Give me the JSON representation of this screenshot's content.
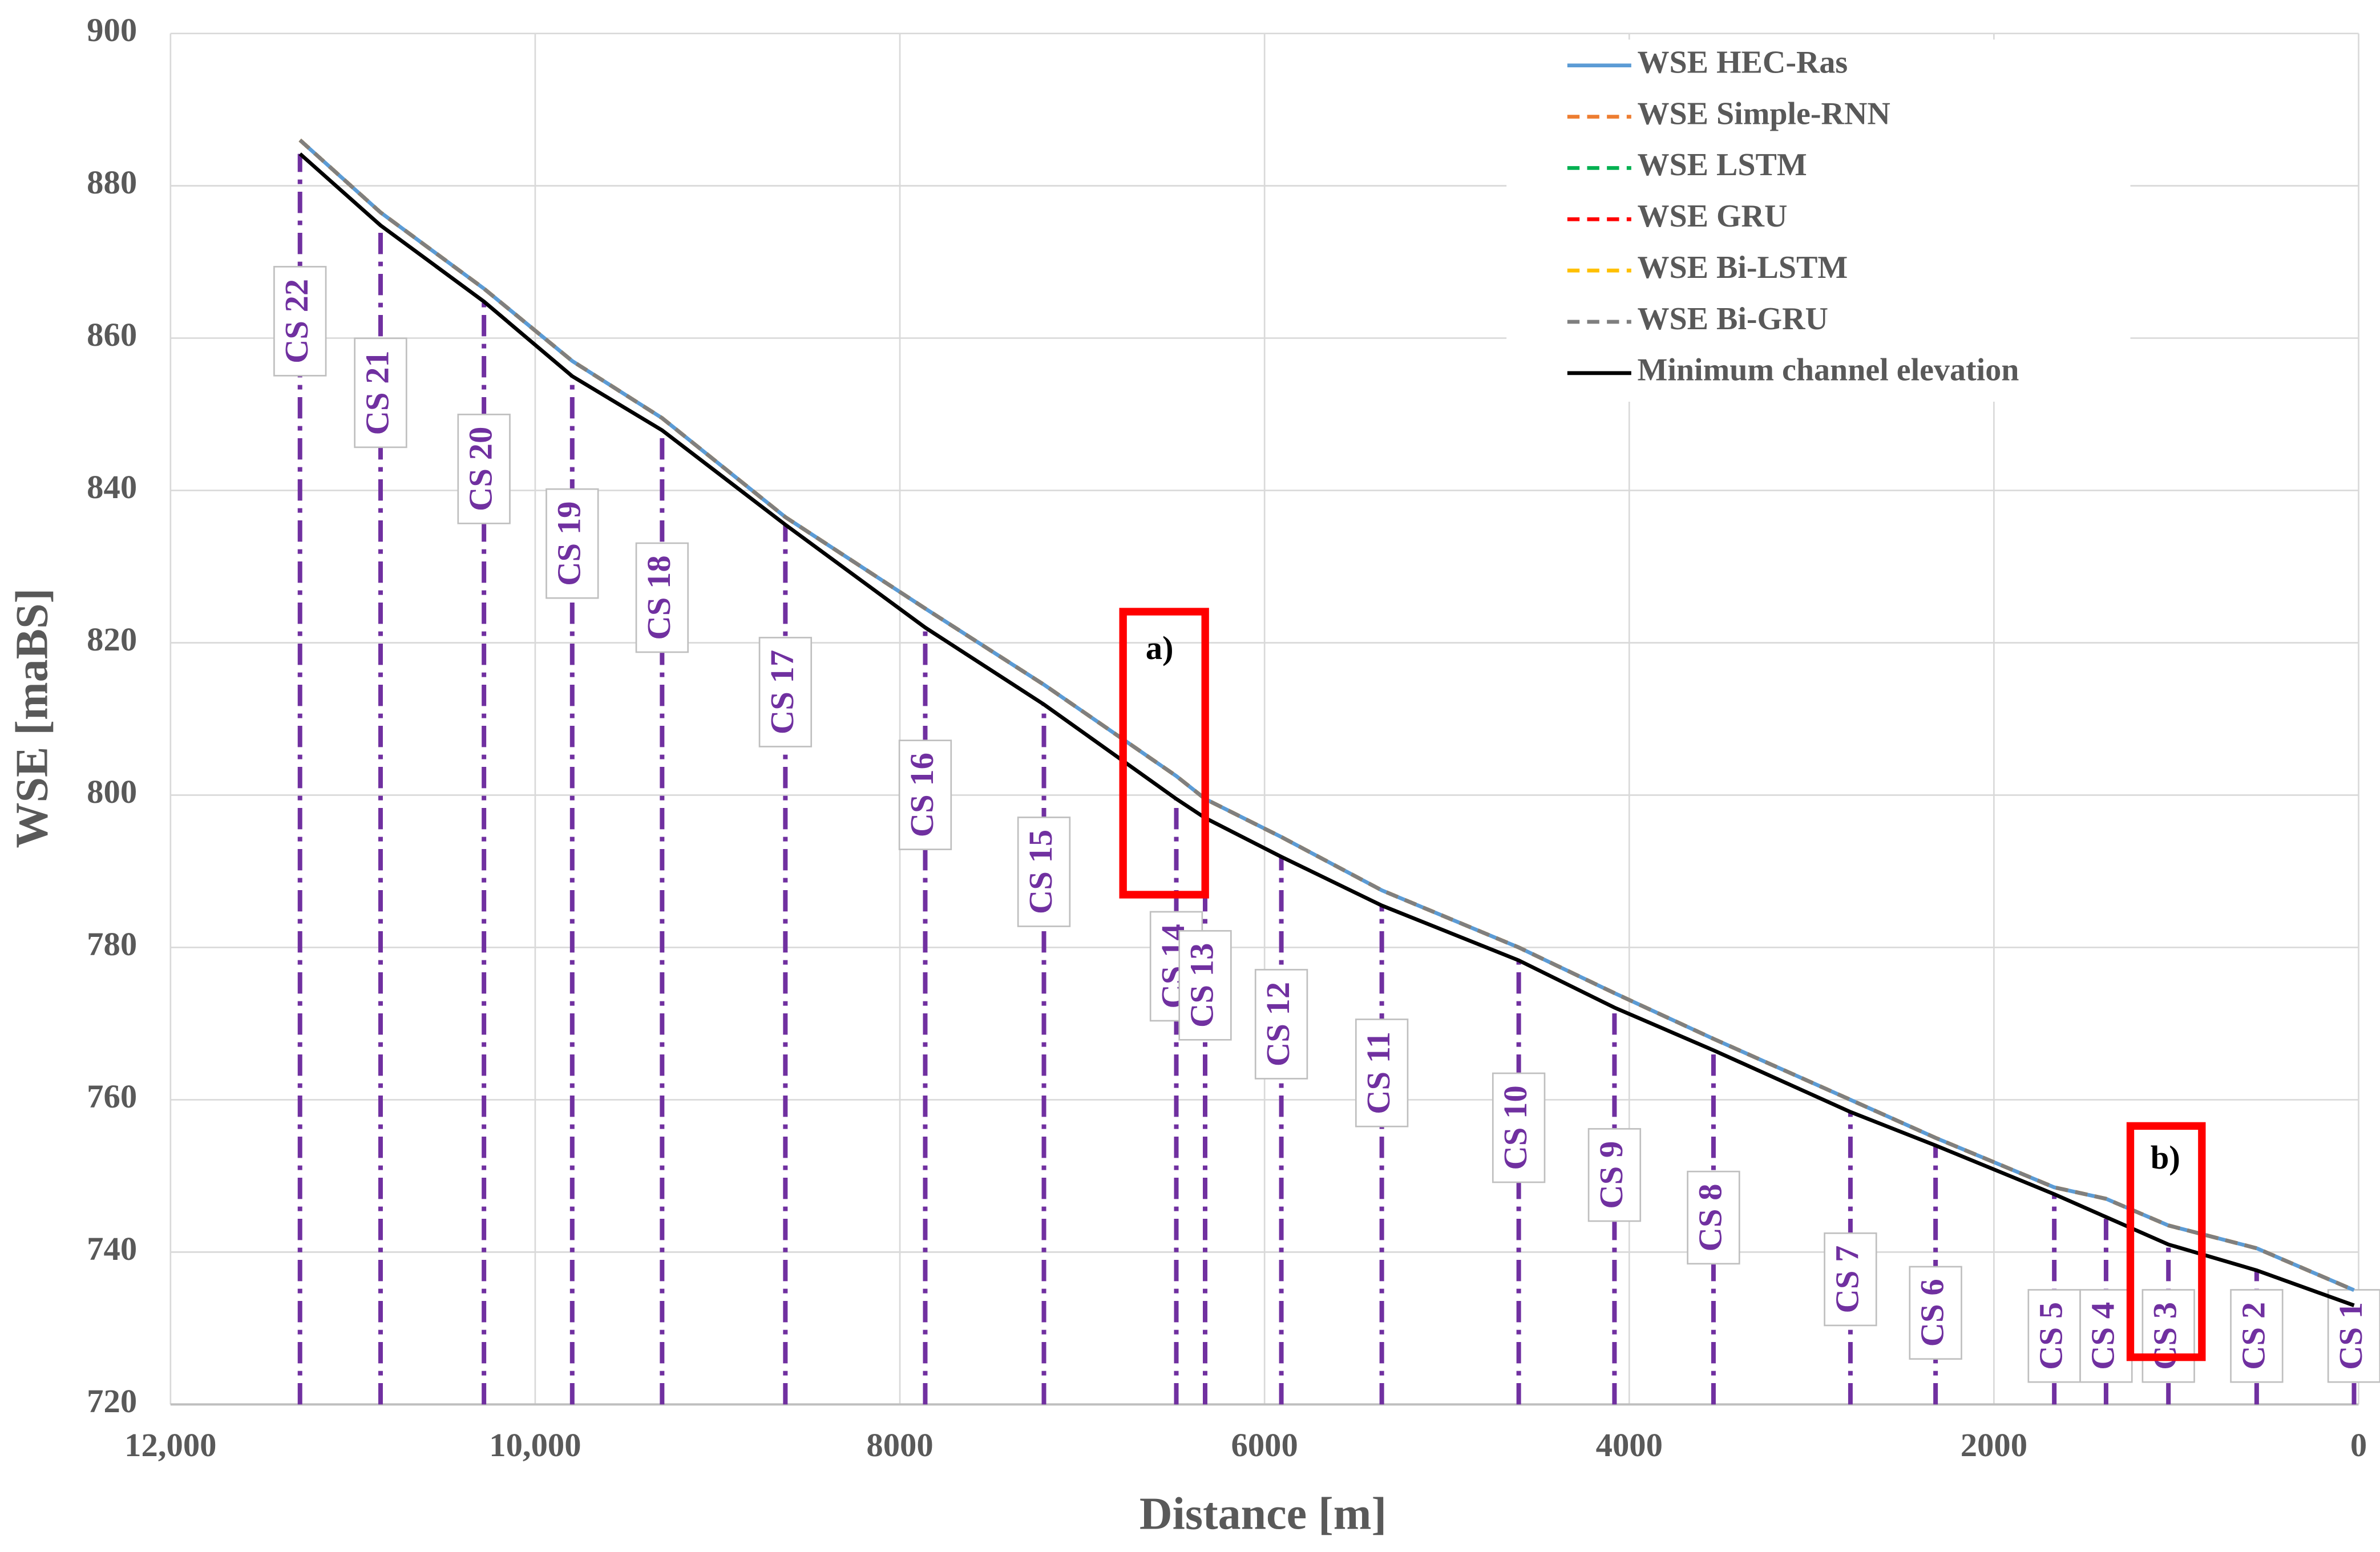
{
  "chart_data": {
    "type": "line",
    "x_label": "Distance [m]",
    "y_label": "WSE [maBS]",
    "x": [
      11290,
      10848,
      10281,
      9797,
      9304,
      8628,
      7861,
      7210,
      6484,
      6326,
      5908,
      5357,
      4606,
      4081,
      3538,
      2787,
      2320,
      1669,
      1385,
      1043,
      559,
      25
    ],
    "section_labels": [
      "CS 22",
      "CS 21",
      "CS 20",
      "CS 19",
      "CS 18",
      "CS 17",
      "CS 16",
      "CS 15",
      "CS 14",
      "CS 13",
      "CS 12",
      "CS 11",
      "CS 10",
      "CS 9",
      "CS 8",
      "CS 7",
      "CS 6",
      "CS 5",
      "CS 4",
      "CS 3",
      "CS 2",
      "CS 1"
    ],
    "section_color": "#7030a0",
    "series": [
      {
        "name": "WSE HEC-Ras",
        "color": "#5b9bd5",
        "linestyle": "solid",
        "values": [
          886,
          876.5,
          866.5,
          857,
          849.5,
          836.5,
          824.5,
          814.5,
          802.5,
          799.5,
          794.5,
          787.5,
          780,
          774,
          768,
          760,
          755,
          748.5,
          747,
          743.5,
          740.5,
          735
        ]
      },
      {
        "name": "WSE Simple-RNN",
        "color": "#ed7d31",
        "linestyle": "dashed",
        "values": [
          886,
          876.5,
          866.5,
          857,
          849.5,
          836.5,
          824.5,
          814.5,
          802.5,
          799.5,
          794.5,
          787.5,
          780,
          774,
          768,
          760,
          755,
          748.5,
          747,
          743.5,
          740.5,
          735
        ]
      },
      {
        "name": "WSE LSTM",
        "color": "#00b050",
        "linestyle": "dashed",
        "values": [
          886,
          876.5,
          866.5,
          857,
          849.5,
          836.5,
          824.5,
          814.5,
          802.5,
          799.5,
          794.5,
          787.5,
          780,
          774,
          768,
          760,
          755,
          748.5,
          747,
          743.5,
          740.5,
          735
        ]
      },
      {
        "name": "WSE GRU",
        "color": "#ff0000",
        "linestyle": "dashed",
        "values": [
          886,
          876.5,
          866.5,
          857,
          849.5,
          836.5,
          824.5,
          814.5,
          802.5,
          799.5,
          794.5,
          787.5,
          780,
          774,
          768,
          760,
          755,
          748.5,
          747,
          743.5,
          740.5,
          735
        ]
      },
      {
        "name": "WSE Bi-LSTM",
        "color": "#ffc000",
        "linestyle": "dashed",
        "values": [
          886,
          876.5,
          866.5,
          857,
          849.5,
          836.5,
          824.5,
          814.5,
          802.5,
          799.5,
          794.5,
          787.5,
          780,
          774,
          768,
          760,
          755,
          748.5,
          747,
          743.5,
          740.5,
          735
        ]
      },
      {
        "name": "WSE Bi-GRU",
        "color": "#7f7f7f",
        "linestyle": "dashed",
        "values": [
          886,
          876.5,
          866.5,
          857,
          849.5,
          836.5,
          824.5,
          814.5,
          802.5,
          799.5,
          794.5,
          787.5,
          780,
          774,
          768,
          760,
          755,
          748.5,
          747,
          743.5,
          740.5,
          735
        ]
      },
      {
        "name": "Minimum channel elevation",
        "color": "#000000",
        "linestyle": "solid",
        "values": [
          884.2,
          874.8,
          864.8,
          855,
          847.9,
          835.5,
          822,
          811.9,
          799.5,
          797,
          791.9,
          785.5,
          778.3,
          772.1,
          766.5,
          758.4,
          754,
          747.6,
          744.6,
          741,
          737.6,
          733
        ]
      }
    ],
    "xlim": [
      12000,
      0
    ],
    "xticks": [
      {
        "value": 12000,
        "label": "12,000"
      },
      {
        "value": 10000,
        "label": "10,000"
      },
      8000,
      6000,
      4000,
      2000,
      0
    ],
    "ylim": [
      720,
      900
    ],
    "yticks": [
      720,
      740,
      760,
      780,
      800,
      820,
      840,
      860,
      880,
      900
    ],
    "grid": true,
    "legend": "top-right",
    "annotations": [
      "a)",
      "b)"
    ]
  }
}
